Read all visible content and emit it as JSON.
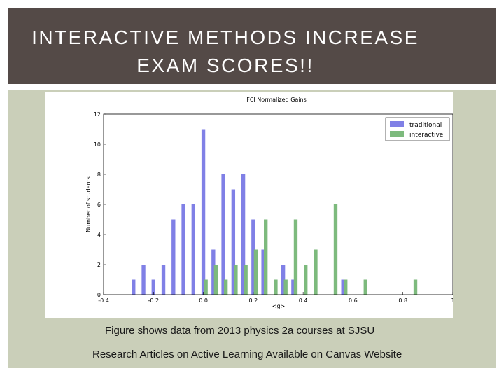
{
  "slide": {
    "title_line1": "INTERACTIVE METHODS INCREASE",
    "title_line2": "EXAM SCORES!!",
    "caption": "Figure shows data from 2013 physics 2a courses at SJSU",
    "note": "Research Articles on Active Learning Available on Canvas Website"
  },
  "colors": {
    "title_bar": "#544a47",
    "content_bg": "#cacfb9",
    "traditional": "#8080e6",
    "interactive": "#7dba7d"
  },
  "chart_data": {
    "type": "bar",
    "title": "FCI Normalized Gains",
    "xlabel": "<g>",
    "ylabel": "Number of students",
    "xlim": [
      -0.4,
      1.0
    ],
    "ylim": [
      0,
      12
    ],
    "xticks": [
      "-0.4",
      "-0.2",
      "0.0",
      "0.2",
      "0.4",
      "0.6",
      "0.8",
      "1"
    ],
    "yticks": [
      "0",
      "2",
      "4",
      "6",
      "8",
      "10",
      "12"
    ],
    "legend_position": "top-right",
    "series": [
      {
        "name": "traditional",
        "color": "#8080e6",
        "points": [
          {
            "x": -0.28,
            "y": 1
          },
          {
            "x": -0.24,
            "y": 2
          },
          {
            "x": -0.2,
            "y": 1
          },
          {
            "x": -0.16,
            "y": 2
          },
          {
            "x": -0.12,
            "y": 5
          },
          {
            "x": -0.08,
            "y": 6
          },
          {
            "x": -0.04,
            "y": 6
          },
          {
            "x": 0.0,
            "y": 11
          },
          {
            "x": 0.04,
            "y": 3
          },
          {
            "x": 0.08,
            "y": 8
          },
          {
            "x": 0.12,
            "y": 7
          },
          {
            "x": 0.16,
            "y": 8
          },
          {
            "x": 0.2,
            "y": 5
          },
          {
            "x": 0.24,
            "y": 3
          },
          {
            "x": 0.32,
            "y": 2
          },
          {
            "x": 0.36,
            "y": 1
          },
          {
            "x": 0.56,
            "y": 1
          }
        ]
      },
      {
        "name": "interactive",
        "color": "#7dba7d",
        "points": [
          {
            "x": 0.01,
            "y": 1
          },
          {
            "x": 0.05,
            "y": 2
          },
          {
            "x": 0.09,
            "y": 1
          },
          {
            "x": 0.13,
            "y": 2
          },
          {
            "x": 0.17,
            "y": 2
          },
          {
            "x": 0.21,
            "y": 3
          },
          {
            "x": 0.25,
            "y": 5
          },
          {
            "x": 0.29,
            "y": 1
          },
          {
            "x": 0.33,
            "y": 1
          },
          {
            "x": 0.37,
            "y": 5
          },
          {
            "x": 0.41,
            "y": 2
          },
          {
            "x": 0.45,
            "y": 3
          },
          {
            "x": 0.53,
            "y": 6
          },
          {
            "x": 0.57,
            "y": 1
          },
          {
            "x": 0.65,
            "y": 1
          },
          {
            "x": 0.85,
            "y": 1
          }
        ]
      }
    ]
  }
}
